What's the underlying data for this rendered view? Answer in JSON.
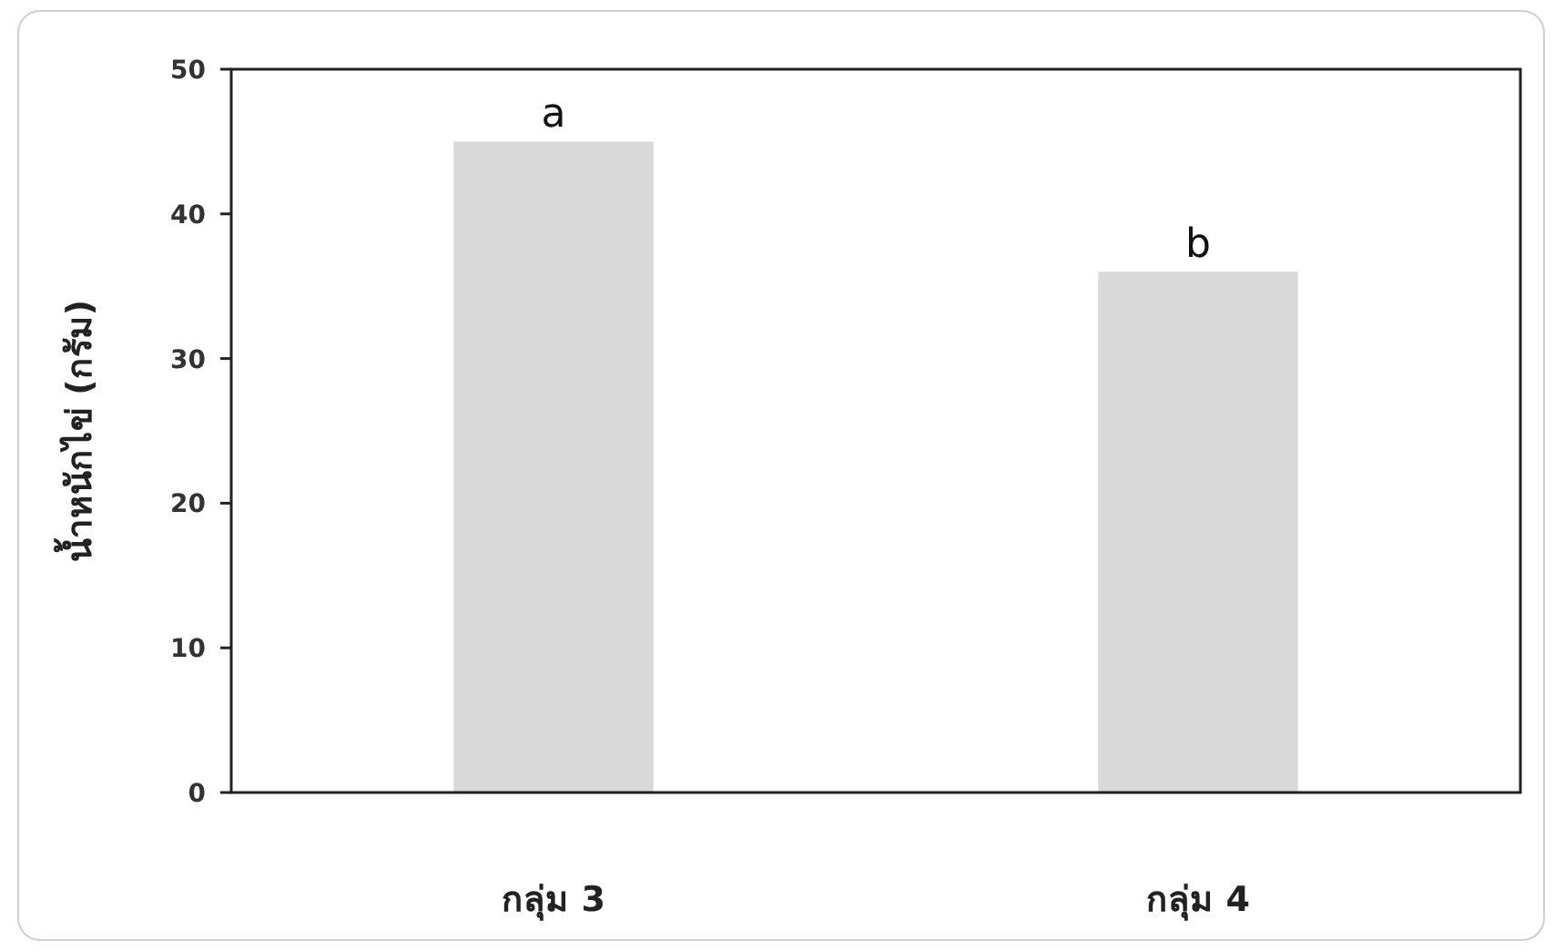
{
  "chart_data": {
    "type": "bar",
    "ylabel": "น้ำหนักไข่ (กรัม)",
    "categories": [
      "กลุ่ม 3",
      "กลุ่ม 4"
    ],
    "values": [
      45,
      36
    ],
    "color": "#d9d9d9",
    "ylim": [
      0,
      50
    ],
    "yticks": [
      0,
      10,
      20,
      30,
      40,
      50
    ],
    "annotations": [
      {
        "text": "a",
        "x": "กลุ่ม 3",
        "y": 45
      },
      {
        "text": "b",
        "x": "กลุ่ม 4",
        "y": 36
      }
    ]
  }
}
